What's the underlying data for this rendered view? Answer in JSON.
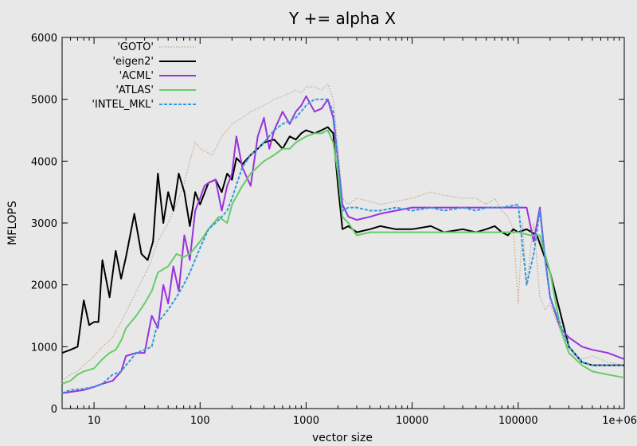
{
  "chart_data": {
    "type": "line",
    "title": "Y += alpha X",
    "xlabel": "vector size",
    "ylabel": "MFLOPS",
    "xscale": "log",
    "xlim": [
      5,
      1000000
    ],
    "ylim": [
      0,
      6000
    ],
    "x_ticks": [
      10,
      100,
      1000,
      10000,
      100000,
      1000000
    ],
    "x_tick_labels": [
      "10",
      "100",
      "1000",
      "10000",
      "100000",
      "1e+06"
    ],
    "y_ticks": [
      0,
      1000,
      2000,
      3000,
      4000,
      5000,
      6000
    ],
    "y_tick_labels": [
      "0",
      "1000",
      "2000",
      "3000",
      "4000",
      "5000",
      "6000"
    ],
    "grid": false,
    "legend_position": "top-left",
    "series": [
      {
        "name": "'GOTO'",
        "color": "#c8a890",
        "style": "dotted",
        "x": [
          5,
          6,
          7,
          8,
          10,
          12,
          15,
          18,
          22,
          27,
          33,
          40,
          50,
          60,
          70,
          80,
          90,
          100,
          130,
          160,
          200,
          250,
          300,
          400,
          500,
          600,
          700,
          800,
          900,
          1000,
          1200,
          1400,
          1600,
          1800,
          2000,
          2200,
          2500,
          3000,
          4000,
          5000,
          7000,
          10000,
          15000,
          20000,
          30000,
          40000,
          50000,
          60000,
          70000,
          80000,
          90000,
          100000,
          110000,
          120000,
          140000,
          160000,
          180000,
          200000,
          220000,
          300000,
          400000,
          500000,
          700000,
          1000000
        ],
        "y": [
          450,
          550,
          600,
          700,
          850,
          1000,
          1150,
          1400,
          1700,
          2000,
          2300,
          2700,
          3000,
          3300,
          3600,
          4000,
          4300,
          4200,
          4100,
          4400,
          4600,
          4700,
          4800,
          4900,
          5000,
          5050,
          5100,
          5150,
          5100,
          5200,
          5200,
          5150,
          5250,
          5000,
          4200,
          3400,
          3300,
          3400,
          3350,
          3300,
          3350,
          3400,
          3500,
          3450,
          3400,
          3400,
          3300,
          3400,
          3200,
          3100,
          2900,
          1700,
          3000,
          2000,
          3000,
          1800,
          1600,
          1700,
          1500,
          900,
          800,
          850,
          750,
          700
        ]
      },
      {
        "name": "'eigen2'",
        "color": "#000000",
        "style": "solid",
        "x": [
          5,
          6,
          7,
          8,
          9,
          10,
          11,
          12,
          14,
          16,
          18,
          20,
          24,
          28,
          32,
          36,
          40,
          45,
          50,
          56,
          63,
          71,
          80,
          90,
          100,
          120,
          140,
          160,
          180,
          200,
          220,
          250,
          300,
          350,
          400,
          500,
          600,
          700,
          800,
          900,
          1000,
          1200,
          1400,
          1600,
          1800,
          2000,
          2200,
          2500,
          3000,
          4000,
          5000,
          7000,
          10000,
          15000,
          20000,
          30000,
          40000,
          50000,
          60000,
          70000,
          80000,
          90000,
          100000,
          120000,
          150000,
          200000,
          300000,
          400000,
          500000,
          700000,
          1000000
        ],
        "y": [
          900,
          950,
          1000,
          1750,
          1350,
          1400,
          1400,
          2400,
          1800,
          2550,
          2100,
          2450,
          3150,
          2500,
          2400,
          2700,
          3800,
          3000,
          3500,
          3200,
          3800,
          3500,
          2950,
          3500,
          3300,
          3650,
          3700,
          3500,
          3800,
          3700,
          4050,
          3950,
          4100,
          4200,
          4300,
          4350,
          4200,
          4400,
          4350,
          4450,
          4500,
          4450,
          4500,
          4550,
          4450,
          3600,
          2900,
          2950,
          2850,
          2900,
          2950,
          2900,
          2900,
          2950,
          2850,
          2900,
          2850,
          2900,
          2950,
          2850,
          2800,
          2900,
          2850,
          2900,
          2800,
          2200,
          1000,
          750,
          700,
          700,
          700
        ]
      },
      {
        "name": "'ACML'",
        "color": "#9933dd",
        "style": "solid",
        "x": [
          5,
          8,
          10,
          12,
          15,
          18,
          20,
          25,
          30,
          35,
          40,
          45,
          50,
          56,
          63,
          71,
          80,
          90,
          100,
          110,
          120,
          140,
          160,
          180,
          200,
          220,
          250,
          300,
          350,
          400,
          450,
          500,
          600,
          700,
          800,
          900,
          1000,
          1200,
          1400,
          1600,
          1800,
          2000,
          2200,
          2500,
          3000,
          4000,
          5000,
          7000,
          10000,
          15000,
          20000,
          30000,
          40000,
          50000,
          60000,
          70000,
          80000,
          90000,
          100000,
          120000,
          140000,
          160000,
          180000,
          200000,
          250000,
          300000,
          400000,
          500000,
          700000,
          1000000
        ],
        "y": [
          250,
          300,
          350,
          400,
          450,
          600,
          850,
          900,
          900,
          1500,
          1300,
          2000,
          1700,
          2300,
          1900,
          2800,
          2400,
          3200,
          3400,
          3600,
          3650,
          3700,
          3200,
          3600,
          3800,
          4400,
          3900,
          3600,
          4400,
          4700,
          4200,
          4500,
          4800,
          4600,
          4800,
          4900,
          5050,
          4800,
          4850,
          5000,
          4700,
          4000,
          3300,
          3100,
          3050,
          3100,
          3150,
          3200,
          3250,
          3250,
          3250,
          3250,
          3250,
          3250,
          3250,
          3250,
          3250,
          3250,
          3250,
          3250,
          2700,
          3250,
          2400,
          1800,
          1300,
          1150,
          1000,
          950,
          900,
          800
        ]
      },
      {
        "name": "'ATLAS'",
        "color": "#66cc66",
        "style": "solid",
        "x": [
          5,
          6,
          7,
          8,
          10,
          12,
          14,
          16,
          18,
          20,
          25,
          30,
          35,
          40,
          50,
          60,
          70,
          80,
          100,
          120,
          150,
          180,
          200,
          250,
          300,
          400,
          500,
          600,
          700,
          800,
          1000,
          1200,
          1400,
          1600,
          1800,
          2000,
          2200,
          2500,
          3000,
          4000,
          5000,
          7000,
          10000,
          15000,
          20000,
          30000,
          40000,
          50000,
          70000,
          100000,
          130000,
          160000,
          200000,
          250000,
          300000,
          400000,
          500000,
          700000,
          1000000
        ],
        "y": [
          400,
          450,
          550,
          600,
          650,
          800,
          900,
          950,
          1100,
          1300,
          1500,
          1700,
          1900,
          2200,
          2300,
          2500,
          2450,
          2500,
          2700,
          2900,
          3100,
          3000,
          3300,
          3600,
          3800,
          4000,
          4100,
          4200,
          4200,
          4300,
          4400,
          4450,
          4450,
          4500,
          4300,
          3800,
          3100,
          3000,
          2800,
          2850,
          2850,
          2850,
          2850,
          2850,
          2850,
          2850,
          2850,
          2850,
          2850,
          2850,
          2800,
          2800,
          2200,
          1300,
          900,
          700,
          600,
          550,
          500
        ]
      },
      {
        "name": "'INTEL_MKL'",
        "color": "#3399dd",
        "style": "dashed",
        "x": [
          5,
          6,
          8,
          10,
          12,
          15,
          18,
          20,
          25,
          30,
          35,
          40,
          45,
          50,
          60,
          70,
          80,
          100,
          120,
          140,
          160,
          180,
          200,
          250,
          300,
          400,
          500,
          600,
          700,
          800,
          1000,
          1200,
          1400,
          1600,
          1800,
          2000,
          2200,
          2500,
          3000,
          4000,
          5000,
          7000,
          10000,
          15000,
          20000,
          30000,
          40000,
          50000,
          70000,
          100000,
          120000,
          140000,
          160000,
          180000,
          200000,
          300000,
          400000,
          500000,
          700000,
          1000000
        ],
        "y": [
          250,
          300,
          320,
          350,
          400,
          550,
          600,
          700,
          900,
          950,
          1000,
          1400,
          1500,
          1600,
          1800,
          2000,
          2200,
          2600,
          2900,
          3000,
          3100,
          3200,
          3400,
          3900,
          4100,
          4300,
          4500,
          4600,
          4650,
          4700,
          4900,
          5000,
          5000,
          5000,
          4800,
          4000,
          3200,
          3250,
          3250,
          3200,
          3200,
          3250,
          3200,
          3250,
          3200,
          3250,
          3200,
          3250,
          3250,
          3300,
          2000,
          2500,
          3200,
          2400,
          1800,
          1000,
          750,
          700,
          700,
          700
        ]
      }
    ]
  }
}
